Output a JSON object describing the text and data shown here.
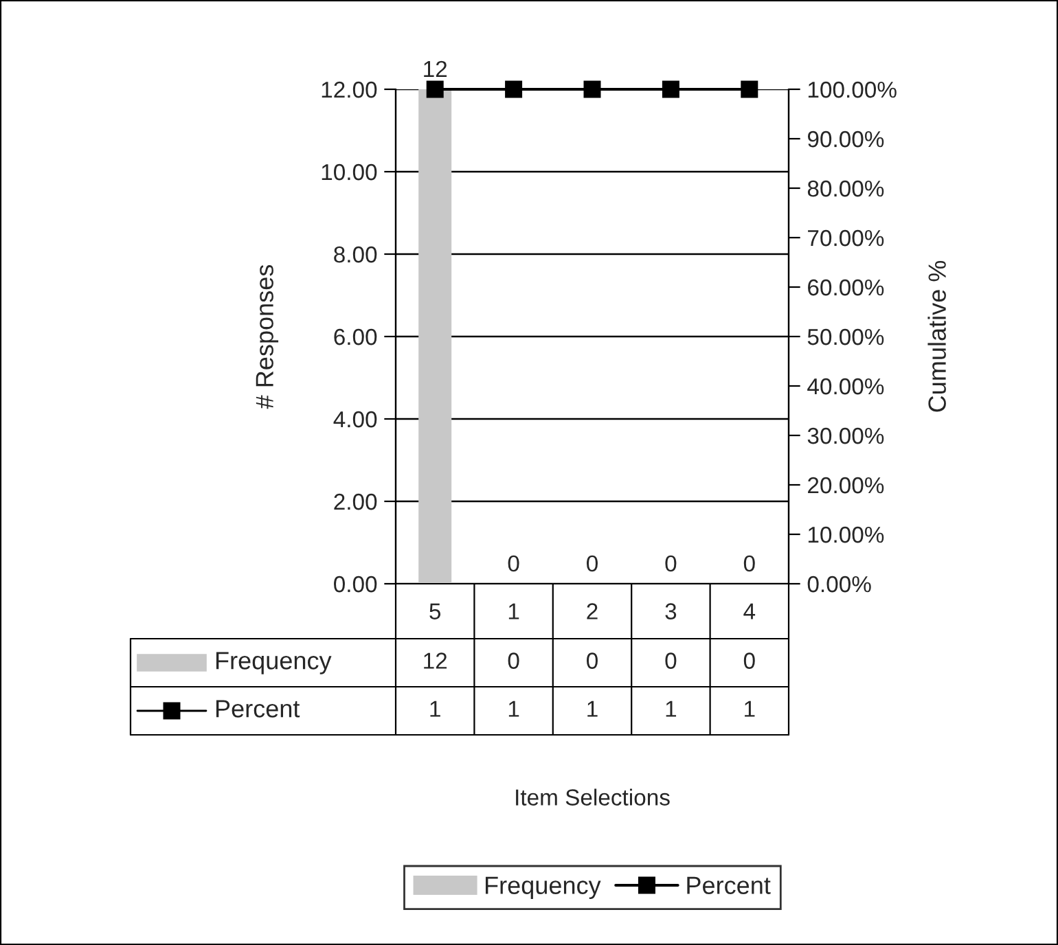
{
  "chart_data": {
    "type": "bar",
    "ylabel": "# Responses",
    "y2label": "Cumulative %",
    "annotations": [
      "Item Selections",
      {
        "text": "12",
        "x": "5",
        "y": 12
      },
      {
        "text": "0",
        "x": "1",
        "y": 0
      },
      {
        "text": "0",
        "x": "2",
        "y": 0
      },
      {
        "text": "0",
        "x": "3",
        "y": 0
      },
      {
        "text": "0",
        "x": "4",
        "y": 0
      }
    ],
    "categories": [
      "5",
      "1",
      "2",
      "3",
      "4"
    ],
    "series": [
      {
        "name": "Frequency",
        "color": "#c8c8c8",
        "values": [
          12,
          0,
          0,
          0,
          0
        ]
      },
      {
        "name": "Percent",
        "type": "line",
        "axis": "y2",
        "color": "#000000",
        "marker": "square",
        "line_style": "solid",
        "values": [
          1,
          1,
          1,
          1,
          1
        ]
      }
    ],
    "ylim": [
      0,
      12
    ],
    "yticks": [
      {
        "value": 0,
        "label": "0.00"
      },
      {
        "value": 2,
        "label": "2.00"
      },
      {
        "value": 4,
        "label": "4.00"
      },
      {
        "value": 6,
        "label": "6.00"
      },
      {
        "value": 8,
        "label": "8.00"
      },
      {
        "value": 10,
        "label": "10.00"
      },
      {
        "value": 12,
        "label": "12.00"
      }
    ],
    "y2lim": [
      0,
      1
    ],
    "y2ticks": [
      {
        "value": 0,
        "label": "0.00%"
      },
      {
        "value": 0.1,
        "label": "10.00%"
      },
      {
        "value": 0.2,
        "label": "20.00%"
      },
      {
        "value": 0.3,
        "label": "30.00%"
      },
      {
        "value": 0.4,
        "label": "40.00%"
      },
      {
        "value": 0.5,
        "label": "50.00%"
      },
      {
        "value": 0.6,
        "label": "60.00%"
      },
      {
        "value": 0.7,
        "label": "70.00%"
      },
      {
        "value": 0.8,
        "label": "80.00%"
      },
      {
        "value": 0.9,
        "label": "90.00%"
      },
      {
        "value": 1,
        "label": "100.00%"
      }
    ],
    "grid": "y",
    "legend": "bottom",
    "data_labels": true
  }
}
